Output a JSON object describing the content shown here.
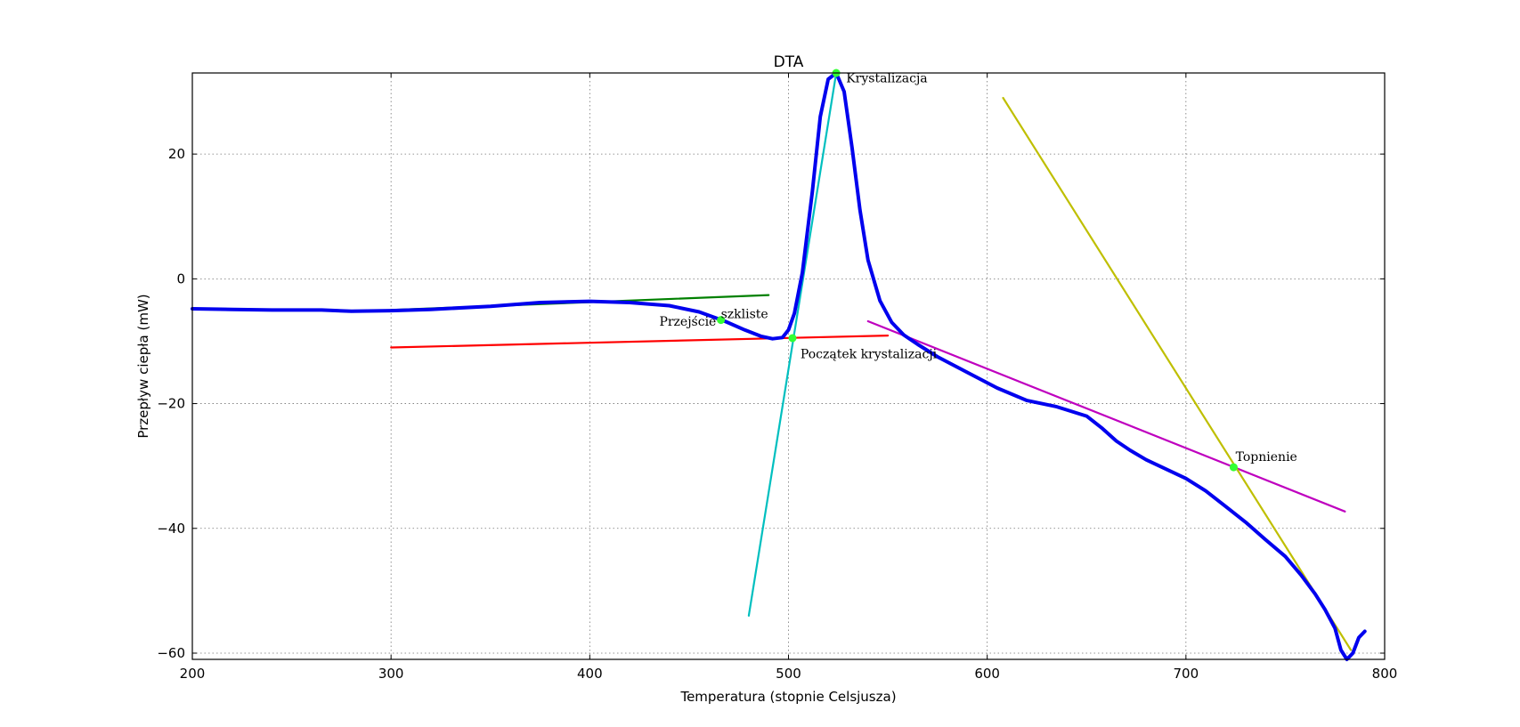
{
  "chart_data": {
    "type": "line",
    "title": "DTA",
    "xlabel": "Temperatura (stopnie Celsjusza)",
    "ylabel": "Przepływ ciepła (mW)",
    "xlim": [
      200,
      800
    ],
    "ylim": [
      -61,
      33
    ],
    "xticks": [
      200,
      300,
      400,
      500,
      600,
      700,
      800
    ],
    "yticks": [
      -60,
      -40,
      -20,
      0,
      20
    ],
    "grid": true,
    "series": [
      {
        "color": "#0000ee",
        "x": [
          200,
          220,
          240,
          265,
          280,
          300,
          320,
          350,
          375,
          400,
          420,
          440,
          455,
          468,
          478,
          486,
          492,
          497,
          500,
          503,
          507,
          512,
          516,
          520,
          524,
          528,
          532,
          536,
          540,
          546,
          552,
          558,
          565,
          575,
          590,
          605,
          620,
          635,
          650,
          658,
          665,
          672,
          680,
          690,
          700,
          710,
          720,
          730,
          740,
          750,
          758,
          765,
          770,
          775,
          778,
          781,
          784,
          787,
          790
        ],
        "y": [
          -4.8,
          -4.9,
          -5.0,
          -5.0,
          -5.2,
          -5.1,
          -4.9,
          -4.4,
          -3.8,
          -3.6,
          -3.8,
          -4.3,
          -5.3,
          -6.8,
          -8.2,
          -9.2,
          -9.6,
          -9.4,
          -8.2,
          -5.5,
          1.0,
          14.0,
          26.0,
          32.0,
          33.0,
          30.0,
          21.0,
          11.0,
          3.0,
          -3.5,
          -7.0,
          -9.0,
          -10.5,
          -12.5,
          -15.0,
          -17.5,
          -19.5,
          -20.5,
          -22.0,
          -24.0,
          -26.0,
          -27.5,
          -29.0,
          -30.5,
          -32.0,
          -34.0,
          -36.5,
          -39.0,
          -41.8,
          -44.5,
          -47.5,
          -50.5,
          -53.0,
          -56.0,
          -59.5,
          -61.0,
          -60.0,
          -57.5,
          -56.5
        ]
      },
      {
        "color": "#008000",
        "x": [
          300,
          490
        ],
        "y": [
          -5.0,
          -2.6
        ]
      },
      {
        "color": "#ff0000",
        "x": [
          300,
          550
        ],
        "y": [
          -11.0,
          -9.1
        ]
      },
      {
        "color": "#00bfbf",
        "x": [
          480,
          524
        ],
        "y": [
          -54.0,
          33.0
        ]
      },
      {
        "color": "#bf00bf",
        "x": [
          540,
          780
        ],
        "y": [
          -6.8,
          -37.3
        ]
      },
      {
        "color": "#bfbf00",
        "x": [
          608,
          783
        ],
        "y": [
          29.0,
          -59.5
        ]
      }
    ],
    "markers": {
      "color": "#33ff33",
      "points": [
        {
          "x": 466,
          "y": -6.6
        },
        {
          "x": 502,
          "y": -9.5
        },
        {
          "x": 524,
          "y": 33.0
        },
        {
          "x": 724,
          "y": -30.2
        }
      ]
    },
    "annotations": [
      {
        "text": "Krystalizacja",
        "x": 529,
        "y": 31.5
      },
      {
        "text": "szkliste",
        "x": 466,
        "y": -6.3
      },
      {
        "text": "Przejście",
        "x": 435,
        "y": -7.5
      },
      {
        "text": "Początek  krystalizacji",
        "x": 506,
        "y": -12.7
      },
      {
        "text": "Topnienie",
        "x": 725,
        "y": -29.2
      }
    ]
  }
}
